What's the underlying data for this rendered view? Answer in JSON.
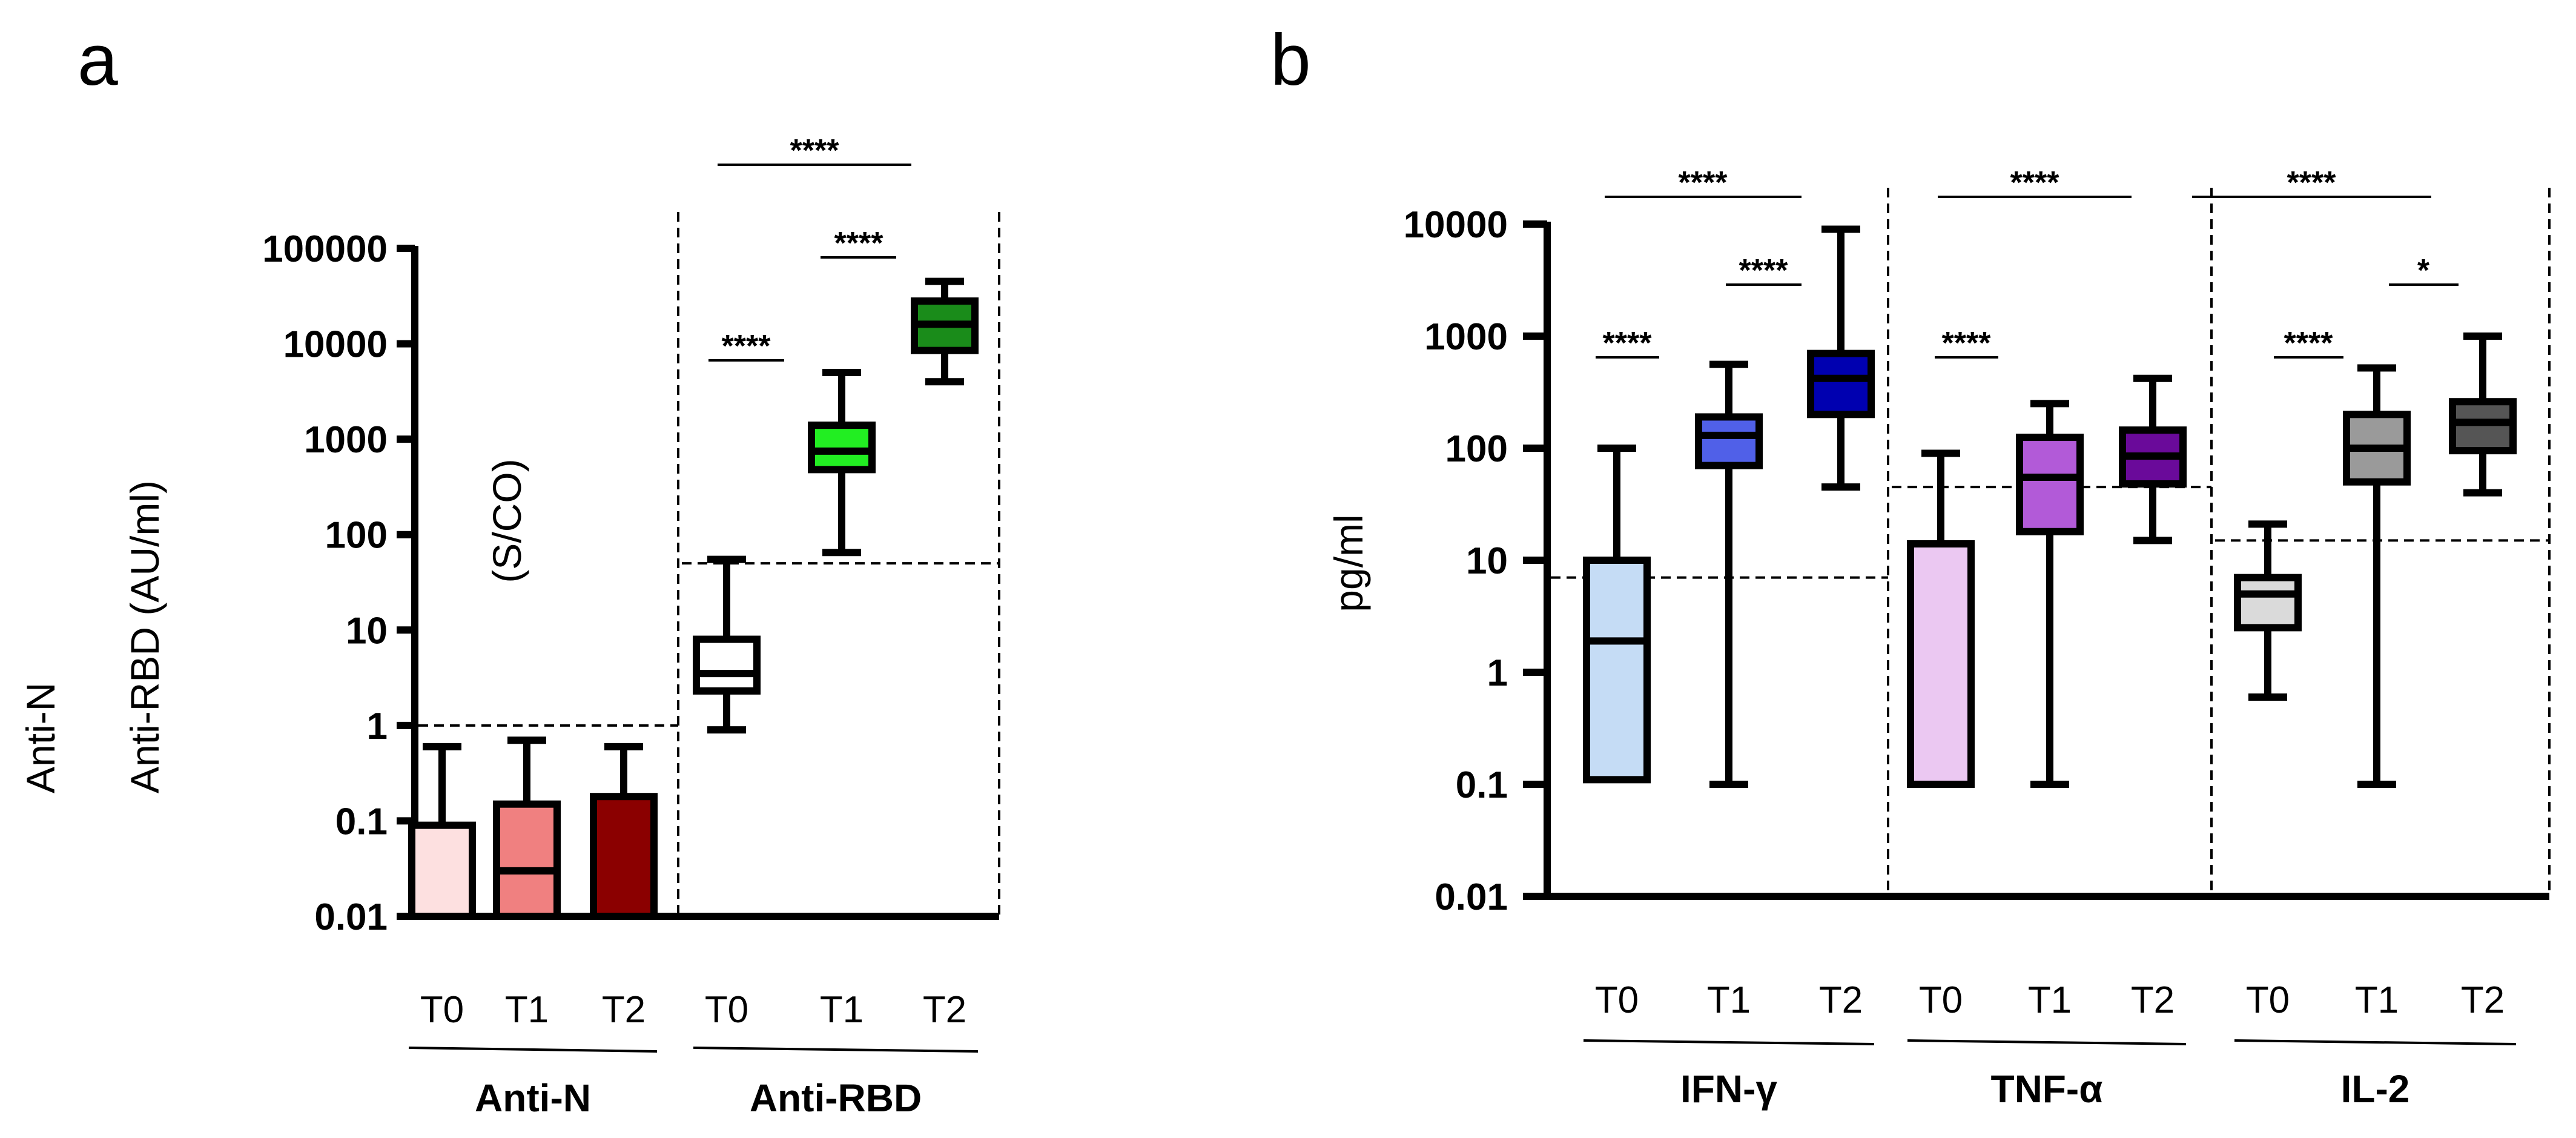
{
  "figure": {
    "panel_a_letter": "a",
    "panel_b_letter": "b"
  },
  "colors": {
    "outline": "#000000",
    "background": "#ffffff"
  },
  "chart_data": [
    {
      "id": "panel-a",
      "type": "box",
      "panel_label": "a",
      "yscale": "log",
      "ylim": [
        0.01,
        100000
      ],
      "ylabel_lines": [
        "(S/CO)",
        "Anti-N",
        "Anti-RBD (AU/ml)"
      ],
      "ytick_labels": [
        "100000",
        "10000",
        "1000",
        "100",
        "10",
        "1",
        "0.1",
        "0.01"
      ],
      "groups": [
        {
          "name": "Anti-N",
          "cutoff": 1,
          "timepoints": [
            "T0",
            "T1",
            "T2"
          ]
        },
        {
          "name": "Anti-RBD",
          "cutoff": 50,
          "timepoints": [
            "T0",
            "T1",
            "T2"
          ]
        }
      ],
      "boxes": [
        {
          "group": "Anti-N",
          "timepoint": "T0",
          "color": "#fde0e0",
          "min": 0.01,
          "q1": 0.01,
          "median": 0.01,
          "q3": 0.09,
          "max": 0.6
        },
        {
          "group": "Anti-N",
          "timepoint": "T1",
          "color": "#f08080",
          "min": 0.01,
          "q1": 0.01,
          "median": 0.03,
          "q3": 0.15,
          "max": 0.7
        },
        {
          "group": "Anti-N",
          "timepoint": "T2",
          "color": "#8b0000",
          "min": 0.01,
          "q1": 0.01,
          "median": 0.01,
          "q3": 0.18,
          "max": 0.6
        },
        {
          "group": "Anti-RBD",
          "timepoint": "T0",
          "color": "#ffffff",
          "min": 0.9,
          "q1": 2.3,
          "median": 3.5,
          "q3": 8,
          "max": 55
        },
        {
          "group": "Anti-RBD",
          "timepoint": "T1",
          "color": "#22ee22",
          "min": 65,
          "q1": 480,
          "median": 750,
          "q3": 1400,
          "max": 5000
        },
        {
          "group": "Anti-RBD",
          "timepoint": "T2",
          "color": "#1a8c1a",
          "min": 4000,
          "q1": 8500,
          "median": 16000,
          "q3": 28000,
          "max": 45000
        }
      ],
      "significance": [
        {
          "label": "****",
          "from": "Anti-RBD T0",
          "to": "Anti-RBD T2"
        },
        {
          "label": "****",
          "from": "Anti-RBD T1",
          "to": "Anti-RBD T2"
        },
        {
          "label": "****",
          "from": "Anti-RBD T0",
          "to": "Anti-RBD T1"
        }
      ]
    },
    {
      "id": "panel-b",
      "type": "box",
      "panel_label": "b",
      "yscale": "log",
      "ylim": [
        0.01,
        10000
      ],
      "ylabel": "pg/ml",
      "ytick_labels": [
        "10000",
        "1000",
        "100",
        "10",
        "1",
        "0.1",
        "0.01"
      ],
      "groups": [
        {
          "name": "IFN-γ",
          "cutoff": 7,
          "timepoints": [
            "T0",
            "T1",
            "T2"
          ]
        },
        {
          "name": "TNF-α",
          "cutoff": 45,
          "timepoints": [
            "T0",
            "T1",
            "T2"
          ]
        },
        {
          "name": "IL-2",
          "cutoff": 15,
          "timepoints": [
            "T0",
            "T1",
            "T2"
          ]
        }
      ],
      "boxes": [
        {
          "group": "IFN-γ",
          "timepoint": "T0",
          "color": "#c5dcf5",
          "min": 0.11,
          "q1": 0.11,
          "median": 1.9,
          "q3": 10,
          "max": 100
        },
        {
          "group": "IFN-γ",
          "timepoint": "T1",
          "color": "#5060e8",
          "min": 0.1,
          "q1": 70,
          "median": 130,
          "q3": 190,
          "max": 560
        },
        {
          "group": "IFN-γ",
          "timepoint": "T2",
          "color": "#0000b0",
          "min": 45,
          "q1": 200,
          "median": 420,
          "q3": 700,
          "max": 9000
        },
        {
          "group": "TNF-α",
          "timepoint": "T0",
          "color": "#ebc8f2",
          "min": 0.1,
          "q1": 0.1,
          "median": 0.1,
          "q3": 14,
          "max": 90
        },
        {
          "group": "TNF-α",
          "timepoint": "T1",
          "color": "#b25ad8",
          "min": 0.1,
          "q1": 18,
          "median": 55,
          "q3": 125,
          "max": 250
        },
        {
          "group": "TNF-α",
          "timepoint": "T2",
          "color": "#6a0a9a",
          "min": 15,
          "q1": 48,
          "median": 85,
          "q3": 145,
          "max": 420
        },
        {
          "group": "IL-2",
          "timepoint": "T0",
          "color": "#dadada",
          "min": 0.6,
          "q1": 2.5,
          "median": 5,
          "q3": 7,
          "max": 21
        },
        {
          "group": "IL-2",
          "timepoint": "T1",
          "color": "#9a9a9a",
          "min": 0.1,
          "q1": 50,
          "median": 100,
          "q3": 200,
          "max": 520
        },
        {
          "group": "IL-2",
          "timepoint": "T2",
          "color": "#555555",
          "min": 40,
          "q1": 95,
          "median": 170,
          "q3": 260,
          "max": 1000
        }
      ],
      "significance": [
        {
          "label": "****",
          "from": "IFN-γ T0",
          "to": "IFN-γ T2"
        },
        {
          "label": "****",
          "from": "IFN-γ T1",
          "to": "IFN-γ T2"
        },
        {
          "label": "****",
          "from": "IFN-γ T0",
          "to": "IFN-γ T1"
        },
        {
          "label": "****",
          "from": "TNF-α T0",
          "to": "TNF-α T2"
        },
        {
          "label": "****",
          "from": "TNF-α T0",
          "to": "TNF-α T1"
        },
        {
          "label": "****",
          "from": "IL-2 T0",
          "to": "IL-2 T2"
        },
        {
          "label": "*",
          "from": "IL-2 T1",
          "to": "IL-2 T2"
        },
        {
          "label": "****",
          "from": "IL-2 T0",
          "to": "IL-2 T1"
        }
      ]
    }
  ]
}
